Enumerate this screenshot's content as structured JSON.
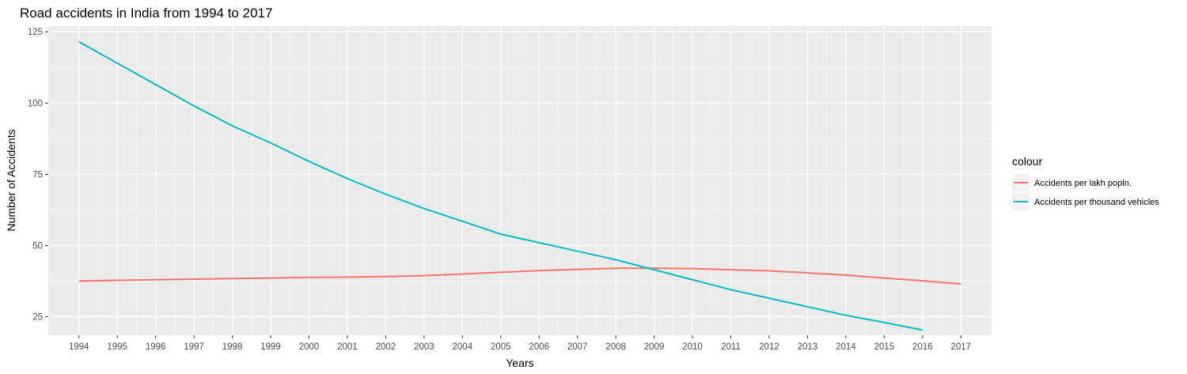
{
  "chart_data": {
    "type": "line",
    "title": "Road accidents in India from 1994 to 2017",
    "xlabel": "Years",
    "ylabel": "Number of Accidents",
    "xlim": [
      1993.2,
      2017.8
    ],
    "ylim": [
      18.5,
      127
    ],
    "grid": true,
    "x_ticks": [
      1994,
      1995,
      1996,
      1997,
      1998,
      1999,
      2000,
      2001,
      2002,
      2003,
      2004,
      2005,
      2006,
      2007,
      2008,
      2009,
      2010,
      2011,
      2012,
      2013,
      2014,
      2015,
      2016,
      2017
    ],
    "y_ticks": [
      25,
      50,
      75,
      100,
      125
    ],
    "legend": {
      "title": "colour",
      "placement": "right"
    },
    "series": [
      {
        "name": "Accidents per lakh popln.",
        "color": "#F8766D",
        "x": [
          1994,
          1995,
          1996,
          1997,
          1998,
          1999,
          2000,
          2001,
          2002,
          2003,
          2004,
          2005,
          2006,
          2007,
          2008,
          2009,
          2010,
          2011,
          2012,
          2013,
          2014,
          2015,
          2016,
          2017
        ],
        "values": [
          37.5,
          37.8,
          38.0,
          38.2,
          38.4,
          38.6,
          38.8,
          38.9,
          39.1,
          39.4,
          40.0,
          40.6,
          41.2,
          41.6,
          42.0,
          42.0,
          41.9,
          41.5,
          41.1,
          40.4,
          39.6,
          38.6,
          37.6,
          36.5
        ]
      },
      {
        "name": "Accidents per thousand vehicles",
        "color": "#00BFC4",
        "x": [
          1994,
          1995,
          1996,
          1997,
          1998,
          1999,
          2000,
          2001,
          2002,
          2003,
          2004,
          2005,
          2006,
          2007,
          2008,
          2009,
          2010,
          2011,
          2012,
          2013,
          2014,
          2015,
          2016
        ],
        "values": [
          121.5,
          114.0,
          106.5,
          99.0,
          92.0,
          86.0,
          79.5,
          73.5,
          68.0,
          63.0,
          58.5,
          54.0,
          51.0,
          48.0,
          45.0,
          41.5,
          38.0,
          34.5,
          31.5,
          28.5,
          25.5,
          23.0,
          20.3
        ]
      }
    ]
  }
}
